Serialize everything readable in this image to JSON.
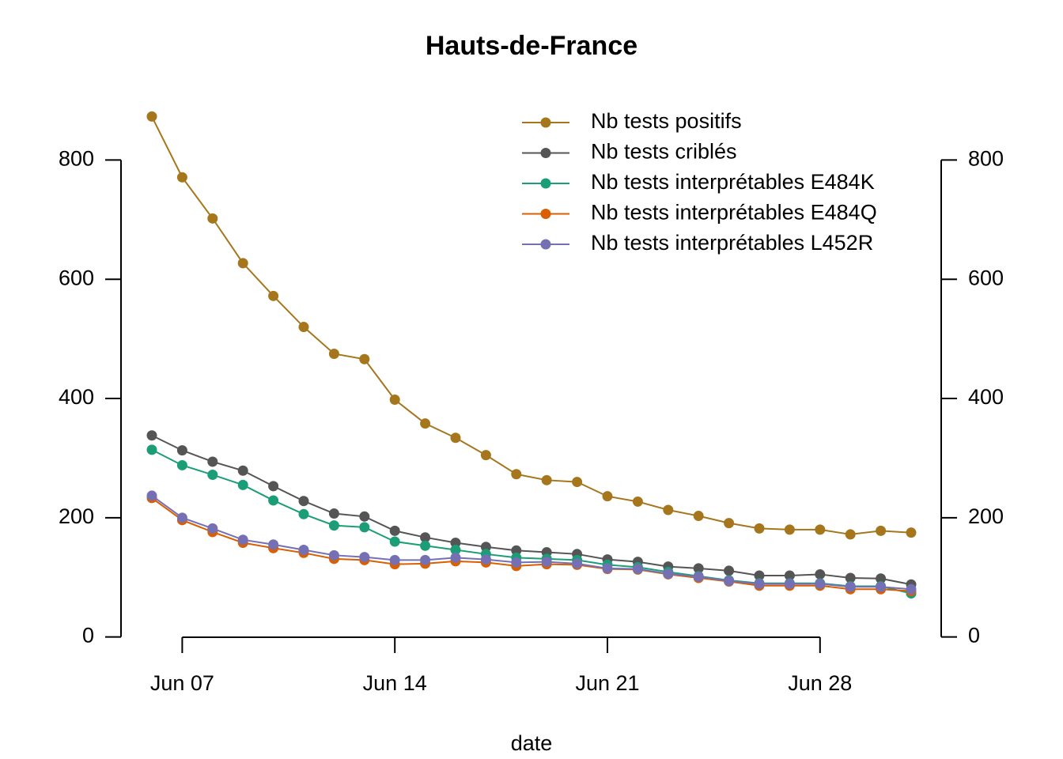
{
  "chart_data": {
    "type": "line",
    "title": "Hauts-de-France",
    "xlabel": "date",
    "categories": [
      null,
      "Jun 07",
      null,
      null,
      null,
      null,
      null,
      null,
      "Jun 14",
      null,
      null,
      null,
      null,
      null,
      null,
      "Jun 21",
      null,
      null,
      null,
      null,
      null,
      null,
      "Jun 28",
      null,
      null,
      null
    ],
    "series": [
      {
        "name": "Nb tests positifs",
        "color": "#a6761d",
        "values": [
          873,
          771,
          702,
          627,
          572,
          520,
          475,
          466,
          398,
          358,
          334,
          305,
          273,
          263,
          260,
          236,
          227,
          213,
          203,
          191,
          182,
          180,
          180,
          172,
          178,
          175
        ]
      },
      {
        "name": "Nb tests criblés",
        "color": "#555555",
        "values": [
          338,
          313,
          294,
          279,
          253,
          228,
          207,
          202,
          178,
          167,
          158,
          151,
          145,
          142,
          139,
          130,
          126,
          118,
          115,
          111,
          103,
          103,
          105,
          99,
          98,
          88
        ]
      },
      {
        "name": "Nb tests interprétables E484K",
        "color": "#1b9e77",
        "values": [
          314,
          288,
          272,
          255,
          229,
          206,
          187,
          184,
          160,
          153,
          146,
          139,
          133,
          131,
          129,
          121,
          117,
          109,
          102,
          95,
          90,
          90,
          90,
          85,
          85,
          73
        ]
      },
      {
        "name": "Nb tests interprétables E484Q",
        "color": "#d95f02",
        "values": [
          233,
          196,
          176,
          158,
          149,
          141,
          131,
          129,
          122,
          123,
          127,
          125,
          119,
          122,
          121,
          114,
          113,
          105,
          99,
          93,
          86,
          86,
          86,
          80,
          80,
          77
        ]
      },
      {
        "name": "Nb tests interprétables L452R",
        "color": "#7570b3",
        "values": [
          237,
          200,
          182,
          163,
          155,
          146,
          137,
          134,
          129,
          129,
          133,
          130,
          125,
          126,
          123,
          115,
          114,
          106,
          101,
          94,
          89,
          89,
          89,
          84,
          84,
          80
        ]
      }
    ],
    "ylim": [
      -35,
      908
    ],
    "yticks": [
      0,
      200,
      400,
      600,
      800
    ],
    "y2lim": [
      -35,
      908
    ],
    "y2ticks": [
      0,
      200,
      400,
      600,
      800
    ],
    "legend": "top-right",
    "grid": false
  }
}
